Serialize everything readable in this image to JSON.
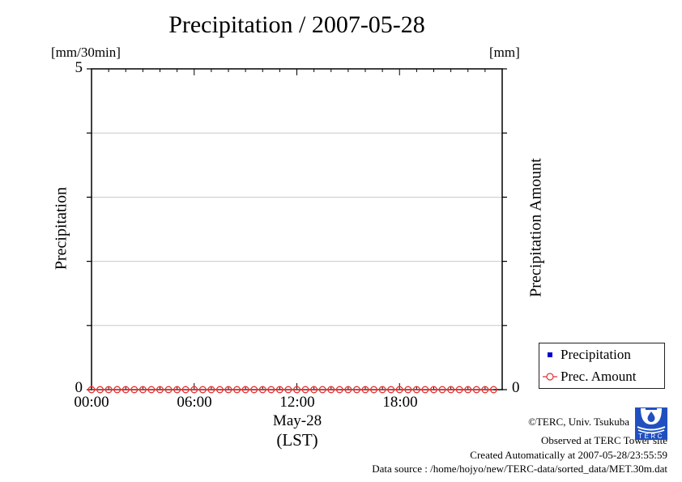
{
  "title": "Precipitation / 2007-05-28",
  "left_axis": {
    "unit": "[mm/30min]",
    "label": "Precipitation",
    "ymax_label": "5",
    "ymin_label": "0"
  },
  "right_axis": {
    "unit": "[mm]",
    "label": "Precipitation Amount",
    "ymin_label": "0"
  },
  "x_axis": {
    "tick_labels": [
      "00:00",
      "06:00",
      "12:00",
      "18:00"
    ],
    "date_label": "May-28",
    "tz_label": "(LST)"
  },
  "legend": {
    "items": [
      {
        "label": "Precipitation",
        "marker": "square",
        "color": "#0000cc"
      },
      {
        "label": "Prec. Amount",
        "marker": "circle",
        "color": "#dd3333"
      }
    ]
  },
  "footer": {
    "copyright": "©TERC, Univ. Tsukuba",
    "observed": "Observed at TERC Tower site",
    "created": "Created Automatically at 2007-05-28/23:55:59",
    "datasource": "Data source : /home/hojyo/new/TERC-data/sorted_data/MET.30m.dat",
    "logo_text": "TERC"
  },
  "chart_data": {
    "type": "line",
    "title": "Precipitation / 2007-05-28",
    "xlabel": "May-28 (LST)",
    "ylabel_left": "Precipitation [mm/30min]",
    "ylabel_right": "Precipitation Amount [mm]",
    "xlim": [
      0,
      24
    ],
    "ylim_left": [
      0,
      5
    ],
    "x_major_every": 6,
    "x_minor_every": 1,
    "grid": true,
    "grid_color": "#c8c8c8",
    "legend_position": "outside-right-bottom",
    "x_hours": [
      0,
      0.5,
      1,
      1.5,
      2,
      2.5,
      3,
      3.5,
      4,
      4.5,
      5,
      5.5,
      6,
      6.5,
      7,
      7.5,
      8,
      8.5,
      9,
      9.5,
      10,
      10.5,
      11,
      11.5,
      12,
      12.5,
      13,
      13.5,
      14,
      14.5,
      15,
      15.5,
      16,
      16.5,
      17,
      17.5,
      18,
      18.5,
      19,
      19.5,
      20,
      20.5,
      21,
      21.5,
      22,
      22.5,
      23,
      23.5
    ],
    "series": [
      {
        "name": "Precipitation",
        "axis": "left",
        "marker": "square",
        "color": "#0000cc",
        "visible": false,
        "values": [
          0,
          0,
          0,
          0,
          0,
          0,
          0,
          0,
          0,
          0,
          0,
          0,
          0,
          0,
          0,
          0,
          0,
          0,
          0,
          0,
          0,
          0,
          0,
          0,
          0,
          0,
          0,
          0,
          0,
          0,
          0,
          0,
          0,
          0,
          0,
          0,
          0,
          0,
          0,
          0,
          0,
          0,
          0,
          0,
          0,
          0,
          0,
          0
        ]
      },
      {
        "name": "Prec. Amount",
        "axis": "right",
        "marker": "circle",
        "color": "#dd3333",
        "visible": true,
        "values": [
          0,
          0,
          0,
          0,
          0,
          0,
          0,
          0,
          0,
          0,
          0,
          0,
          0,
          0,
          0,
          0,
          0,
          0,
          0,
          0,
          0,
          0,
          0,
          0,
          0,
          0,
          0,
          0,
          0,
          0,
          0,
          0,
          0,
          0,
          0,
          0,
          0,
          0,
          0,
          0,
          0,
          0,
          0,
          0,
          0,
          0,
          0,
          0
        ]
      }
    ]
  }
}
